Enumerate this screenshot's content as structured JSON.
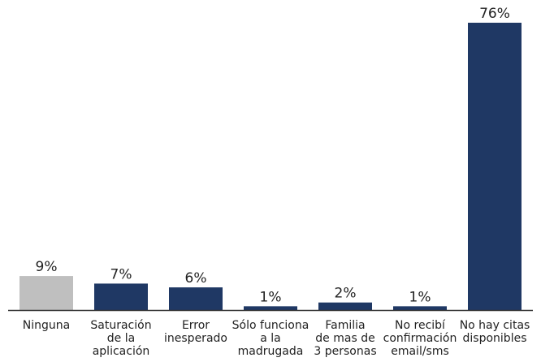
{
  "chart_data": {
    "type": "bar",
    "categories": [
      [
        "Ninguna"
      ],
      [
        "Saturación",
        "de la",
        "aplicación"
      ],
      [
        "Error",
        "inesperado"
      ],
      [
        "Sólo funciona",
        "a la",
        "madrugada"
      ],
      [
        "Familia",
        "de mas de",
        "3 personas"
      ],
      [
        "No recibí",
        "confirmación",
        "email/sms"
      ],
      [
        "No hay citas",
        "disponibles"
      ]
    ],
    "values": [
      9,
      7,
      6,
      1,
      2,
      1,
      76
    ],
    "value_labels": [
      "9%",
      "7%",
      "6%",
      "1%",
      "2%",
      "1%",
      "76%"
    ],
    "colors": [
      "#bfbfbf",
      "#1f3864",
      "#1f3864",
      "#1f3864",
      "#1f3864",
      "#1f3864",
      "#1f3864"
    ]
  }
}
